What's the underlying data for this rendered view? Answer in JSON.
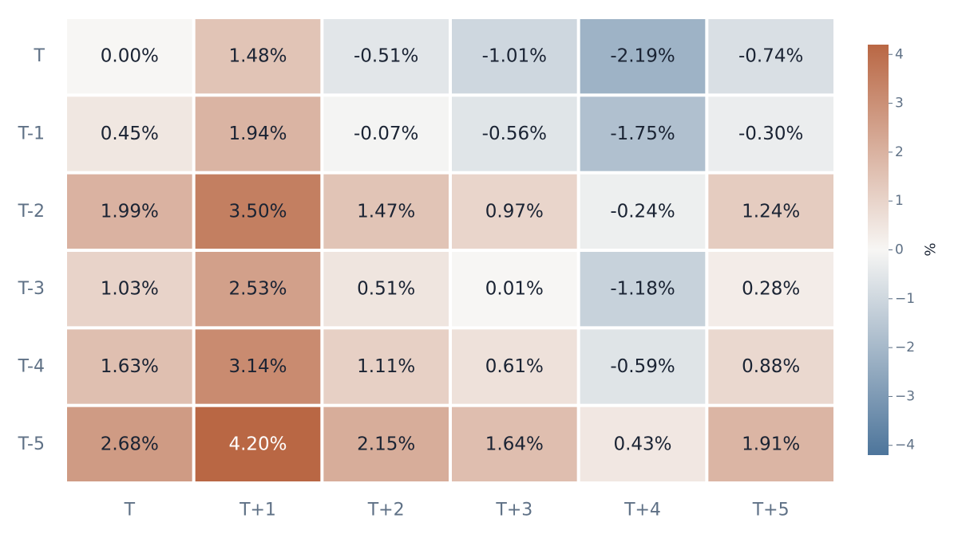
{
  "chart_data": {
    "type": "heatmap",
    "title": "",
    "xlabel": "",
    "ylabel": "",
    "x_categories": [
      "T",
      "T+1",
      "T+2",
      "T+3",
      "T+4",
      "T+5"
    ],
    "y_categories": [
      "T",
      "T-1",
      "T-2",
      "T-3",
      "T-4",
      "T-5"
    ],
    "values": [
      [
        0.0,
        1.48,
        -0.51,
        -1.01,
        -2.19,
        -0.74
      ],
      [
        0.45,
        1.94,
        -0.07,
        -0.56,
        -1.75,
        -0.3
      ],
      [
        1.99,
        3.5,
        1.47,
        0.97,
        -0.24,
        1.24
      ],
      [
        1.03,
        2.53,
        0.51,
        0.01,
        -1.18,
        0.28
      ],
      [
        1.63,
        3.14,
        1.11,
        0.61,
        -0.59,
        0.88
      ],
      [
        2.68,
        4.2,
        2.15,
        1.64,
        0.43,
        1.91
      ]
    ],
    "cell_labels": [
      [
        "0.00%",
        "1.48%",
        "-0.51%",
        "-1.01%",
        "-2.19%",
        "-0.74%"
      ],
      [
        "0.45%",
        "1.94%",
        "-0.07%",
        "-0.56%",
        "-1.75%",
        "-0.30%"
      ],
      [
        "1.99%",
        "3.50%",
        "1.47%",
        "0.97%",
        "-0.24%",
        "1.24%"
      ],
      [
        "1.03%",
        "2.53%",
        "0.51%",
        "0.01%",
        "-1.18%",
        "0.28%"
      ],
      [
        "1.63%",
        "3.14%",
        "1.11%",
        "0.61%",
        "-0.59%",
        "0.88%"
      ],
      [
        "2.68%",
        "4.20%",
        "2.15%",
        "1.64%",
        "0.43%",
        "1.91%"
      ]
    ],
    "colorscale": {
      "min": -4.2,
      "max": 4.2,
      "low_color": "#4d759b",
      "mid_color": "#f7f6f4",
      "high_color": "#b96744"
    },
    "colorbar": {
      "title": "%",
      "ticks": [
        4,
        3,
        2,
        1,
        0,
        -1,
        -2,
        -3,
        -4
      ],
      "tick_labels": [
        "4",
        "3",
        "2",
        "1",
        "0",
        "−1",
        "−2",
        "−3",
        "−4"
      ]
    },
    "text_colors": {
      "dark": "#1a2333",
      "light": "#ffffff"
    },
    "tick_color": "#5f7186",
    "grid": false
  }
}
